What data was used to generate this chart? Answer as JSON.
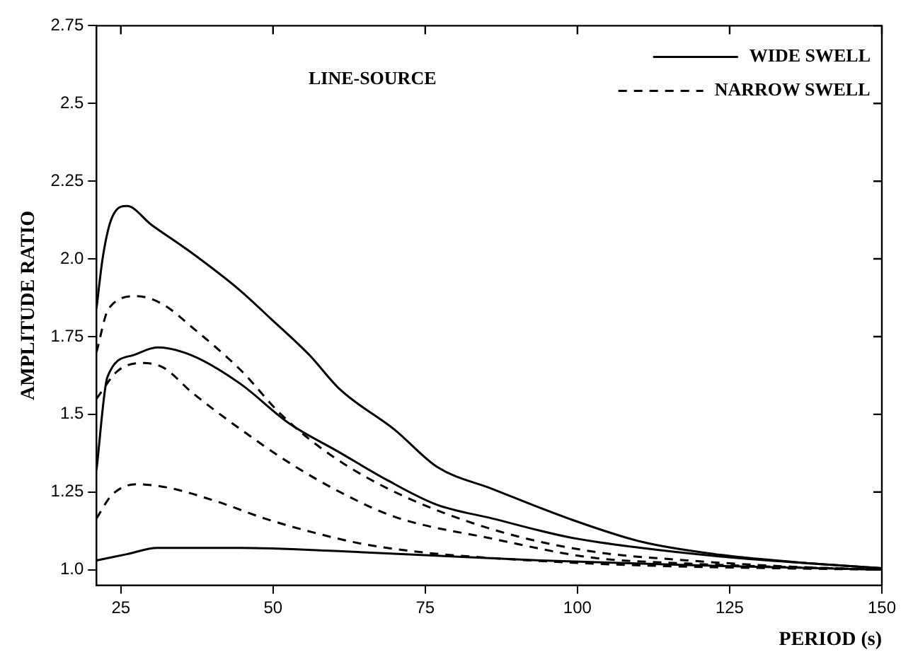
{
  "chart_data": {
    "type": "line",
    "xlabel": "PERIOD (s)",
    "ylabel": "AMPLITUDE RATIO",
    "annotations": [
      "LINE-SOURCE"
    ],
    "xlim": [
      21,
      150
    ],
    "ylim": [
      0.95,
      2.75
    ],
    "xticks": [
      25,
      50,
      75,
      100,
      125,
      150
    ],
    "yticks": [
      {
        "value": 1,
        "label": "1.0"
      },
      1.25,
      1.5,
      1.75,
      {
        "value": 2,
        "label": "2.0"
      },
      2.25,
      2.5,
      2.75
    ],
    "grid": false,
    "legend": "top right",
    "marker": "none",
    "series": [
      {
        "name": "WIDE SWELL",
        "color": "#000000",
        "line_style": "solid",
        "x": [
          21,
          22,
          23,
          24,
          26,
          30,
          36.6,
          44.5,
          49.5,
          56,
          61,
          70,
          77,
          86,
          98.5,
          110.5,
          122.6,
          138.5,
          150
        ],
        "values": [
          1.84,
          2.0,
          2.1,
          2.15,
          2.17,
          2.11,
          2.02,
          1.9,
          1.81,
          1.69,
          1.58,
          1.45,
          1.33,
          1.26,
          1.165,
          1.09,
          1.05,
          1.02,
          1.005
        ]
      },
      {
        "color": "#000000",
        "line_style": "solid",
        "x": [
          21,
          22.8,
          27,
          31,
          36.6,
          44.5,
          52.7,
          60.7,
          68.6,
          76.8,
          86,
          98.5,
          110.5,
          126.5,
          138.5,
          150
        ],
        "values": [
          1.32,
          1.62,
          1.69,
          1.715,
          1.69,
          1.6,
          1.47,
          1.38,
          1.29,
          1.21,
          1.165,
          1.105,
          1.07,
          1.037,
          1.02,
          1.005
        ]
      },
      {
        "color": "#000000",
        "line_style": "solid",
        "x": [
          21,
          26,
          31,
          44.5,
          60.7,
          76.8,
          94,
          118,
          150
        ],
        "values": [
          1.03,
          1.05,
          1.07,
          1.07,
          1.06,
          1.045,
          1.03,
          1.015,
          1.0
        ]
      },
      {
        "name": "NARROW SWELL",
        "color": "#000000",
        "line_style": "dashed",
        "x": [
          21,
          23,
          27.6,
          31.8,
          36.7,
          44.8,
          51.3,
          59.4,
          70,
          86,
          102,
          118,
          135,
          150
        ],
        "values": [
          1.7,
          1.84,
          1.88,
          1.855,
          1.78,
          1.64,
          1.5,
          1.37,
          1.25,
          1.13,
          1.06,
          1.03,
          1.01,
          1.0
        ]
      },
      {
        "color": "#000000",
        "line_style": "dashed",
        "x": [
          21,
          24.5,
          28.6,
          32,
          36.7,
          44.8,
          53,
          61,
          70,
          86,
          102,
          118,
          150
        ],
        "values": [
          1.55,
          1.64,
          1.665,
          1.65,
          1.57,
          1.45,
          1.34,
          1.25,
          1.17,
          1.1,
          1.04,
          1.02,
          1.0
        ]
      },
      {
        "color": "#000000",
        "line_style": "dashed",
        "x": [
          21,
          23.5,
          27.5,
          32.5,
          40.7,
          48.6,
          56.6,
          64.7,
          72.7,
          80.7,
          102,
          118,
          150
        ],
        "values": [
          1.165,
          1.24,
          1.275,
          1.265,
          1.22,
          1.165,
          1.12,
          1.083,
          1.06,
          1.045,
          1.02,
          1.01,
          1.0
        ]
      }
    ]
  }
}
